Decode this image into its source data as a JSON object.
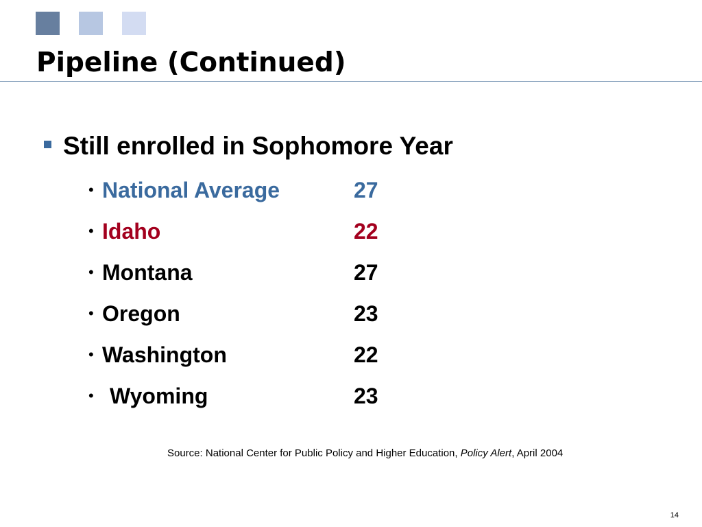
{
  "slide": {
    "title": "Pipeline (Continued)",
    "main_bullet": "Still enrolled in Sophomore Year",
    "items": [
      {
        "label": "National Average",
        "value": "27",
        "color": "#3a6a9e"
      },
      {
        "label": "Idaho",
        "value": "22",
        "color": "#a3001e"
      },
      {
        "label": "Montana",
        "value": "27",
        "color": "#000000"
      },
      {
        "label": "Oregon",
        "value": "23",
        "color": "#000000"
      },
      {
        "label": "Washington",
        "value": "22",
        "color": "#000000"
      },
      {
        "label": "Wyoming",
        "value": "23",
        "color": "#000000"
      }
    ],
    "source": {
      "prefix": "Source: National Center for Public Policy and Higher Education, ",
      "publication": "Policy Alert",
      "suffix": ", April 2004"
    },
    "page_number": "14"
  },
  "theme": {
    "square_colors": [
      "#677f9f",
      "#b7c7e2",
      "#d3dcf2"
    ],
    "rule_color": "#6f8fb0",
    "bullet_color": "#3a6a9e"
  }
}
